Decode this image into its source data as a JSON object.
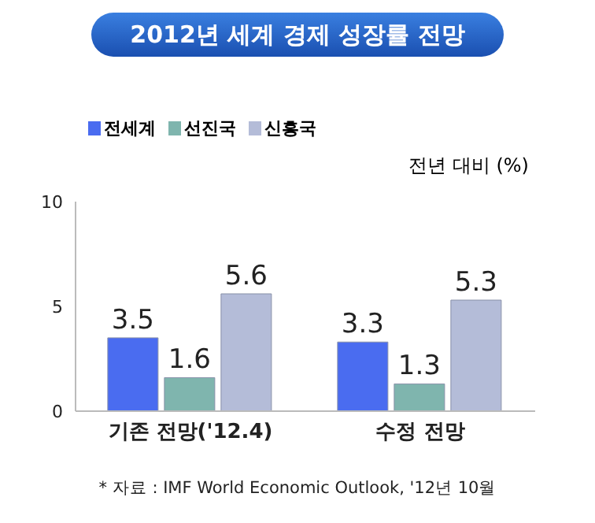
{
  "chart_data": {
    "type": "bar",
    "title": "2012년 세계 경제 성장률 전망",
    "ylabel": "전년 대비 (%)",
    "categories": [
      "기존 전망('12.4)",
      "수정 전망"
    ],
    "series": [
      {
        "name": "전세계",
        "color": "#4a6cf0",
        "values": [
          3.5,
          3.3
        ]
      },
      {
        "name": "선진국",
        "color": "#7fb5ae",
        "values": [
          1.6,
          1.3
        ]
      },
      {
        "name": "신흥국",
        "color": "#b4bcd8",
        "values": [
          5.6,
          5.3
        ]
      }
    ],
    "ylim": [
      0,
      10
    ],
    "yticks": [
      0,
      5,
      10
    ],
    "grid": false,
    "legend": "top left",
    "data_labels": true,
    "annotations": [
      "* 자료 : IMF World Economic Outlook, '12년 10월"
    ]
  }
}
